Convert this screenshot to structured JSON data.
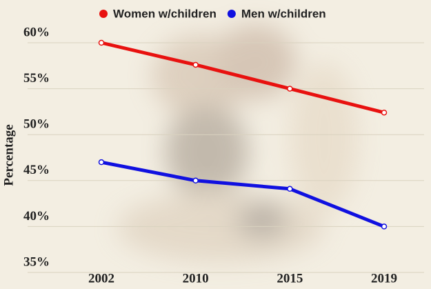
{
  "chart_data": {
    "type": "line",
    "y_label": "Percentage",
    "categories": [
      "2002",
      "2010",
      "2015",
      "2019"
    ],
    "series": [
      {
        "name": "Women w/children",
        "color": "#e8110f",
        "values": [
          60,
          57.6,
          55,
          52.4
        ]
      },
      {
        "name": "Men w/children",
        "color": "#1010e0",
        "values": [
          47,
          45,
          44.1,
          40
        ]
      }
    ],
    "ylim": [
      35,
      60
    ],
    "yticks": [
      {
        "value": 35,
        "label": "35%"
      },
      {
        "value": 40,
        "label": "40%"
      },
      {
        "value": 45,
        "label": "45%"
      },
      {
        "value": 50,
        "label": "50%"
      },
      {
        "value": 55,
        "label": "55%"
      },
      {
        "value": 60,
        "label": "60%"
      }
    ],
    "grid": true
  }
}
